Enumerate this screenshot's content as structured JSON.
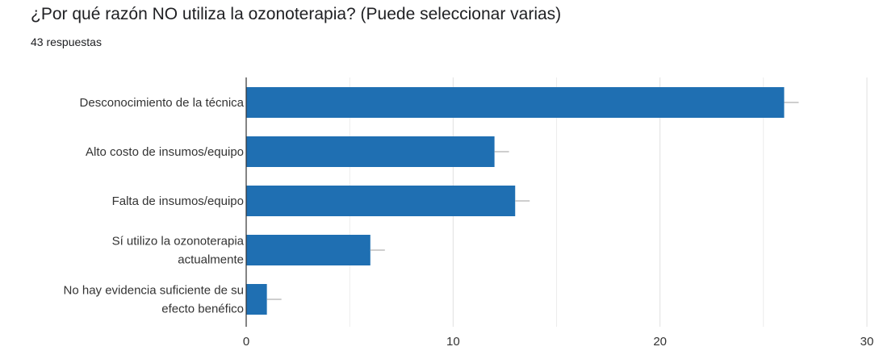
{
  "header": {
    "title": "¿Por qué razón NO utiliza la ozonoterapia? (Puede seleccionar varias)",
    "responses": "43 respuestas"
  },
  "colors": {
    "bar": "#1f6fb2",
    "grid": "#e0e0e0",
    "axis": "#333333",
    "text": "#333333",
    "whisker": "#bdbdbd"
  },
  "chart_data": {
    "type": "bar",
    "orientation": "horizontal",
    "title": "¿Por qué razón NO utiliza la ozonoterapia? (Puede seleccionar varias)",
    "subtitle": "43 respuestas",
    "categories": [
      [
        "Desconocimiento de la técnica"
      ],
      [
        "Alto costo de insumos/equipo"
      ],
      [
        "Falta de insumos/equipo"
      ],
      [
        "Sí utilizo la ozonoterapia",
        "actualmente"
      ],
      [
        "No hay evidencia suficiente de su",
        "efecto benéfico"
      ]
    ],
    "values": [
      26,
      12,
      13,
      6,
      1
    ],
    "xlim": [
      0,
      30
    ],
    "xticks": [
      0,
      10,
      20,
      30
    ],
    "grid": true
  }
}
